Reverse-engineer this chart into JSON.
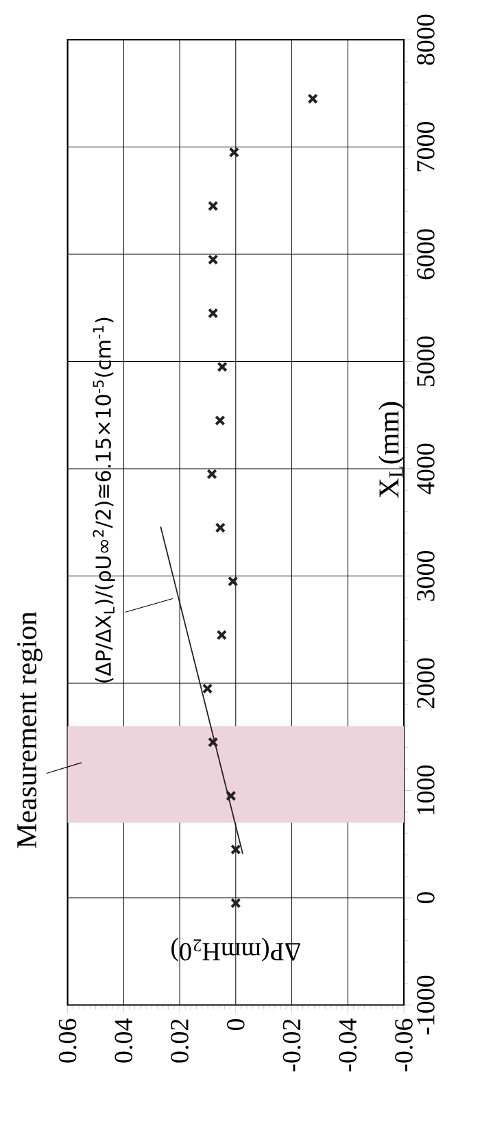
{
  "chart_data": {
    "type": "scatter",
    "xlabel": "ΔP(mmH$_{2}$0)",
    "ylabel": "X$_{L}$(mm)",
    "xlim": [
      0.06,
      -0.06
    ],
    "xticks": [
      0.06,
      0.04,
      0.02,
      0,
      -0.02,
      -0.04,
      -0.06
    ],
    "ylim": [
      -1000,
      8000
    ],
    "yticks": [
      -1000,
      0,
      1000,
      2000,
      3000,
      4000,
      5000,
      6000,
      7000,
      8000
    ],
    "grid": true,
    "series": [
      {
        "color": "#222222",
        "marker": "cross",
        "x": [
          0.0,
          0.0,
          0.0017,
          0.0081,
          0.0101,
          0.005,
          0.001,
          0.0055,
          0.0085,
          0.0056,
          0.0048,
          0.0081,
          0.0081,
          0.0081,
          0.0006,
          -0.0275
        ],
        "values": [
          -50,
          450,
          950,
          1450,
          1950,
          2450,
          2950,
          3450,
          3950,
          4450,
          4950,
          5450,
          5950,
          6450,
          6950,
          7450
        ]
      },
      {
        "type": "line",
        "color": "#222222",
        "x": [
          -0.0025,
          0.0268
        ],
        "values": [
          410,
          3460
        ]
      }
    ],
    "bands": [
      {
        "axis": "y",
        "from": 700,
        "to": 1600,
        "label": "Measurement region",
        "color": "#ecd3dc"
      }
    ],
    "annotations": [
      "(ΔP/ΔX$_{L}$)/(ρU∞$^{2}$/2)≅6.15×10$^{-5}$(cm$^{-1}$)"
    ]
  }
}
